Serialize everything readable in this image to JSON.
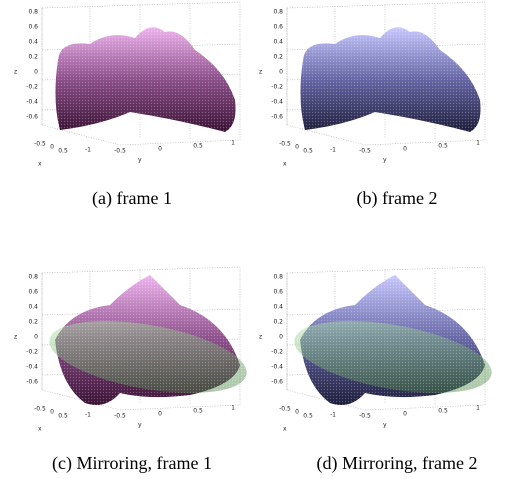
{
  "panels": [
    {
      "caption": "(a) frame 1",
      "z_ticks": [
        "0.8",
        "0.6",
        "0.4",
        "0.2",
        "0",
        "-0.2",
        "-0.4",
        "-0.6"
      ],
      "y_ticks": [
        "-1",
        "-0.5",
        "0",
        "0.5",
        "1"
      ],
      "x_ticks": [
        "-0.5",
        "0",
        "0.5"
      ],
      "x_label": "x",
      "y_label": "y",
      "z_label": "z"
    },
    {
      "caption": "(b) frame 2",
      "z_ticks": [
        "0.8",
        "0.6",
        "0.4",
        "0.2",
        "0",
        "-0.2",
        "-0.4",
        "-0.6"
      ],
      "y_ticks": [
        "-1",
        "-0.5",
        "0",
        "0.5",
        "1"
      ],
      "x_ticks": [
        "-0.5",
        "0",
        "0.5"
      ],
      "x_label": "x",
      "y_label": "y",
      "z_label": "z"
    },
    {
      "caption": "(c) Mirroring, frame 1",
      "z_ticks": [
        "0.8",
        "0.6",
        "0.4",
        "0.2",
        "0",
        "-0.2",
        "-0.4",
        "-0.6"
      ],
      "y_ticks": [
        "-1",
        "-0.5",
        "0",
        "0.5",
        "1"
      ],
      "x_ticks": [
        "-0.5",
        "0",
        "0.5"
      ],
      "x_label": "x",
      "y_label": "y",
      "z_label": "z"
    },
    {
      "caption": "(d) Mirroring, frame 2",
      "z_ticks": [
        "0.8",
        "0.6",
        "0.4",
        "0.2",
        "0",
        "-0.2",
        "-0.4",
        "-0.6"
      ],
      "y_ticks": [
        "-1",
        "-0.5",
        "0",
        "0.5",
        "1"
      ],
      "x_ticks": [
        "-0.5",
        "0",
        "0.5"
      ],
      "x_label": "x",
      "y_label": "y",
      "z_label": "z"
    }
  ]
}
